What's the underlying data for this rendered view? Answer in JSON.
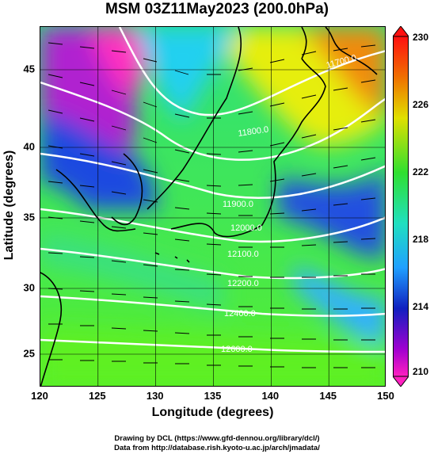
{
  "title": "MSM 03Z11May2023 (200.0hPa)",
  "x_axis": {
    "label": "Longitude (degrees)",
    "ticks": [
      "120",
      "125",
      "130",
      "135",
      "140",
      "145",
      "150"
    ]
  },
  "y_axis": {
    "label": "Latitude  (degrees)",
    "ticks": [
      "45",
      "40",
      "35",
      "30",
      "25"
    ]
  },
  "colorbar": {
    "ticks": [
      "230",
      "226",
      "222",
      "218",
      "214",
      "210"
    ],
    "min": 210,
    "max": 230
  },
  "contour_labels": [
    "12600.0",
    "12400.0",
    "12200.0",
    "12100.0",
    "12000.0",
    "11900.0",
    "11800.0",
    "11700.0"
  ],
  "credits": [
    "Drawing by DCL (https://www.gfd-dennou.org/library/dcl/)",
    "Data from http://database.rish.kyoto-u.ac.jp/arch/jmadata/"
  ],
  "colors": {
    "frame": "#000000",
    "contour": "#ffffff",
    "coast": "#000000"
  },
  "map_extent": {
    "lon": [
      120,
      150
    ],
    "lat": [
      22.5,
      47.8
    ]
  }
}
